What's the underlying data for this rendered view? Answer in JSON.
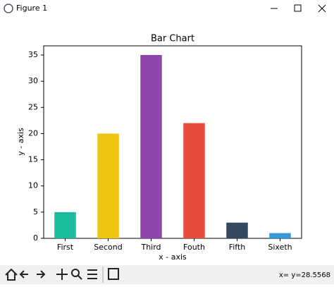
{
  "window": {
    "title": "Figure 1",
    "status": "x= y=28.5568"
  },
  "chart_data": {
    "type": "bar",
    "title": "Bar Chart",
    "x_label": "x - axis",
    "y_label": "y - axis",
    "categories": [
      "First",
      "Second",
      "Third",
      "Fouth",
      "Fifth",
      "Sixeth"
    ],
    "values": [
      5,
      20,
      35,
      22,
      3,
      1
    ],
    "colors": [
      "#1abc9c",
      "#f1c40f",
      "#8e44ad",
      "#e74c3c",
      "#34495e",
      "#3498db"
    ],
    "ylim": [
      0,
      36.75
    ],
    "yticks": [
      0,
      5,
      10,
      15,
      20,
      25,
      30,
      35
    ],
    "grid": false
  }
}
